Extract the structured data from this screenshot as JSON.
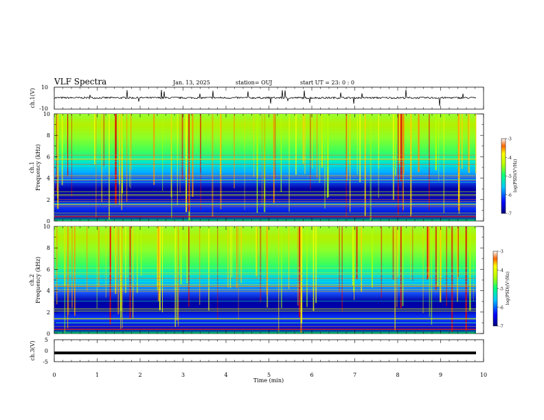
{
  "header": {
    "title": "VLF Spectra",
    "date": "Jan. 13, 2025",
    "station": "station= OUJ",
    "start": "start  UT =   23: 0  : 0"
  },
  "chart_data": [
    {
      "type": "line",
      "panel": "ch1-waveform",
      "ylabel": "ch.1(V)",
      "ylim": [
        -10,
        10
      ],
      "yticks": [
        "10",
        "-10"
      ],
      "xlim": [
        0,
        10
      ],
      "baseline": 0.3,
      "color": "#000000"
    },
    {
      "type": "heatmap",
      "panel": "ch1-spectrogram",
      "ylabel_top": "ch.1",
      "ylabel": "Frequency (kHz)",
      "ylim": [
        0,
        10
      ],
      "yticks": [
        "0",
        "2",
        "4",
        "6",
        "8",
        "10"
      ],
      "xlim": [
        0,
        10
      ],
      "colorbar": {
        "label": "log(PSD)(V²/Hz)",
        "range": [
          -7,
          -3
        ],
        "ticks": [
          "-3",
          "-4",
          "-5",
          "-6",
          "-7"
        ]
      }
    },
    {
      "type": "heatmap",
      "panel": "ch2-spectrogram",
      "ylabel_top": "ch.2",
      "ylabel": "Frequency (kHz)",
      "ylim": [
        0,
        10
      ],
      "yticks": [
        "0",
        "2",
        "4",
        "6",
        "8",
        "10"
      ],
      "xlim": [
        0,
        10
      ],
      "colorbar": {
        "label": "log(PSD)(V²/Hz)",
        "range": [
          -7,
          -3
        ],
        "ticks": [
          "-3",
          "-4",
          "-5",
          "-6",
          "-7"
        ]
      }
    },
    {
      "type": "line",
      "panel": "ch3-waveform",
      "ylabel": "ch.3(V)",
      "ylim": [
        -5,
        5
      ],
      "yticks": [
        "5",
        "0",
        "-5"
      ],
      "xlim": [
        0,
        10
      ],
      "baseline": -1,
      "color": "#000000",
      "xlabel": "Time (min)",
      "xticks": [
        "0",
        "1",
        "2",
        "3",
        "4",
        "5",
        "6",
        "7",
        "8",
        "9",
        "10"
      ]
    }
  ]
}
